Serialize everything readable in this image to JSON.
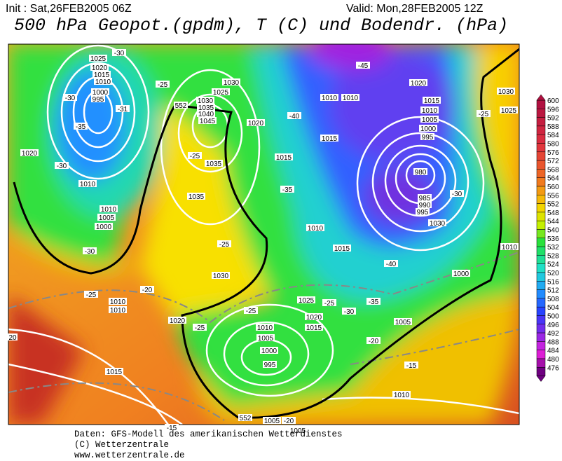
{
  "header": {
    "init": "Init : Sat,26FEB2005 06Z",
    "valid": "Valid: Mon,28FEB2005 12Z",
    "title": "500 hPa Geopot.(gpdm), T (C) und Bodendr. (hPa)"
  },
  "colorbar": {
    "labels": [
      600,
      596,
      592,
      588,
      584,
      580,
      576,
      572,
      568,
      564,
      560,
      556,
      552,
      548,
      544,
      540,
      536,
      532,
      528,
      524,
      520,
      516,
      512,
      508,
      504,
      500,
      496,
      492,
      488,
      484,
      480,
      476
    ]
  },
  "map": {
    "contour_labels": [
      "1025",
      "1020",
      "1015",
      "1010",
      "1000",
      "995",
      "-30",
      "-25",
      "-30",
      "-35",
      "-31",
      "1020",
      "-30",
      "1010",
      "1010",
      "1005",
      "1000",
      "-30",
      "-25",
      "1010",
      "1010",
      "-20",
      "1020",
      "-25",
      "1015",
      "-15",
      "552",
      "1030",
      "1035",
      "1040",
      "1045",
      "1025",
      "1030",
      "-25",
      "1035",
      "1035",
      "-25",
      "1030",
      "1020",
      "-40",
      "1015",
      "-35",
      "1010",
      "1015",
      "1025",
      "-25",
      "1020",
      "1010",
      "1015",
      "1005",
      "1000",
      "995",
      "-25",
      "-30",
      "-35",
      "-20",
      "1005",
      "-15",
      "1010",
      "1005",
      "-20",
      "1005",
      "552",
      "-45",
      "1010",
      "1010",
      "1015",
      "1020",
      "1015",
      "1010",
      "1005",
      "1000",
      "995",
      "980",
      "985",
      "990",
      "995",
      "-30",
      "1030",
      "-40",
      "1000",
      "1030",
      "1025",
      "-25",
      "1010",
      "20"
    ]
  },
  "footer": {
    "lines": [
      "Daten: GFS-Modell des amerikanischen Wetterdienstes",
      "(C) Wetterzentrale",
      "www.wetterzentrale.de"
    ]
  }
}
